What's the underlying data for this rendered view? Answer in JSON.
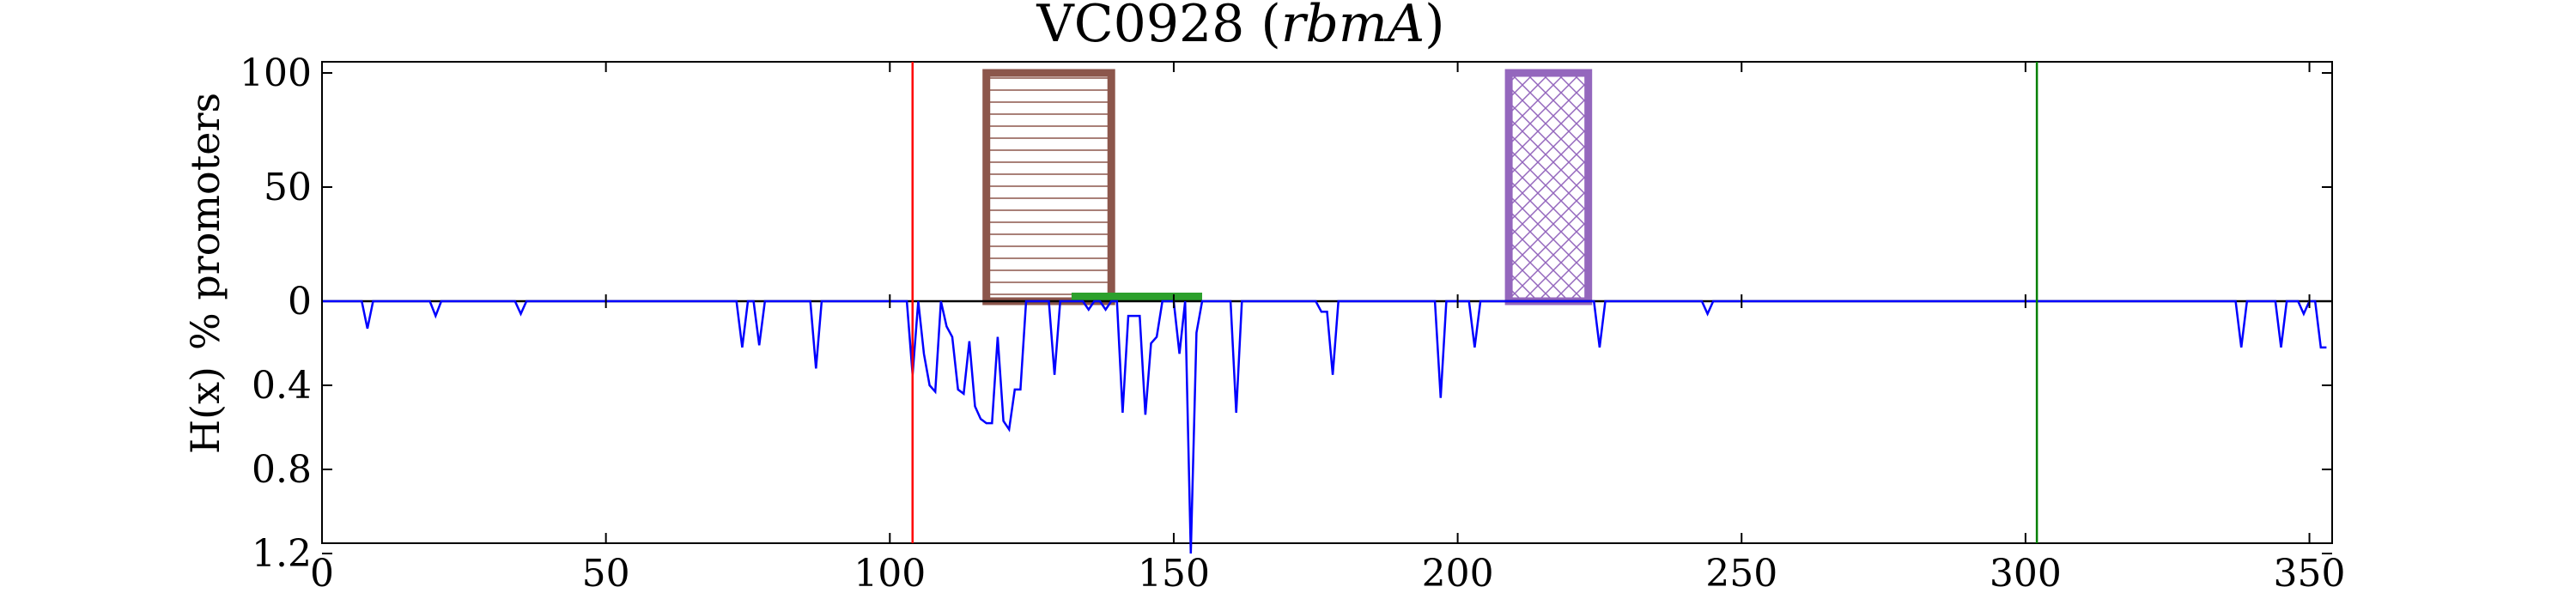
{
  "chart_data": {
    "type": "bar",
    "title": "VC0928 (rbmA)",
    "title_main": "VC0928",
    "title_italic": "rbmA",
    "xlim": [
      0,
      354
    ],
    "xticks": [
      0,
      50,
      100,
      150,
      200,
      250,
      300,
      350
    ],
    "vlines": [
      {
        "x": 104,
        "color": "#ff0000"
      },
      {
        "x": 302,
        "color": "#008000"
      }
    ],
    "top_panel": {
      "ylabel": "% promoters",
      "ylim": [
        0,
        105
      ],
      "yticks": [
        0,
        50,
        100
      ],
      "bars": [
        {
          "x0": 117,
          "x1": 139,
          "value": 100,
          "color": "#8c564b",
          "hatch": "horizontal"
        },
        {
          "x0": 209,
          "x1": 223,
          "value": 100,
          "color": "#9467bd",
          "hatch": "cross"
        }
      ],
      "segments": [
        {
          "x0": 132,
          "x1": 155,
          "y": 2,
          "color": "#2ca02c"
        }
      ]
    },
    "bottom_panel": {
      "ylabel": "H(x)",
      "ylim": [
        0,
        1.5
      ],
      "inverted": true,
      "yticks": [
        0.4,
        0.8,
        1.2
      ],
      "series": [
        {
          "color": "#0000ff",
          "x": [
            0,
            7,
            8,
            9,
            19,
            20,
            21,
            34,
            35,
            36,
            73,
            74,
            75,
            76,
            77,
            78,
            86,
            87,
            88,
            103,
            104,
            105,
            106,
            107,
            108,
            109,
            110,
            111,
            112,
            113,
            114,
            115,
            116,
            117,
            118,
            119,
            120,
            121,
            122,
            123,
            124,
            128,
            129,
            130,
            134,
            135,
            136,
            137,
            138,
            139,
            140,
            141,
            142,
            143,
            144,
            145,
            146,
            147,
            148,
            149,
            150,
            151,
            152,
            153,
            154,
            155,
            160,
            161,
            162,
            175,
            176,
            177,
            178,
            179,
            196,
            197,
            198,
            202,
            203,
            204,
            224,
            225,
            226,
            243,
            244,
            245,
            337,
            338,
            339,
            344,
            345,
            346,
            348,
            349,
            350,
            351,
            352,
            353
          ],
          "y": [
            0,
            0,
            0.13,
            0,
            0,
            0.07,
            0,
            0,
            0.06,
            0,
            0,
            0.22,
            0,
            0,
            0.21,
            0,
            0,
            0.32,
            0,
            0,
            0.35,
            0,
            0.25,
            0.4,
            0.43,
            0,
            0.12,
            0.17,
            0.42,
            0.44,
            0.19,
            0.5,
            0.56,
            0.58,
            0.58,
            0.17,
            0.57,
            0.61,
            0.42,
            0.42,
            0,
            0,
            0.35,
            0,
            0,
            0.04,
            0,
            0,
            0.04,
            0,
            0,
            0.53,
            0.07,
            0.07,
            0.07,
            0.54,
            0.2,
            0.17,
            0,
            0,
            0,
            0.25,
            0,
            1.2,
            0.15,
            0,
            0,
            0.53,
            0,
            0,
            0.05,
            0.05,
            0.35,
            0,
            0,
            0.46,
            0,
            0,
            0.22,
            0,
            0,
            0.22,
            0,
            0,
            0.06,
            0,
            0,
            0.22,
            0,
            0,
            0.22,
            0,
            0,
            0.06,
            0,
            0,
            0.22,
            0.22
          ]
        }
      ]
    }
  }
}
